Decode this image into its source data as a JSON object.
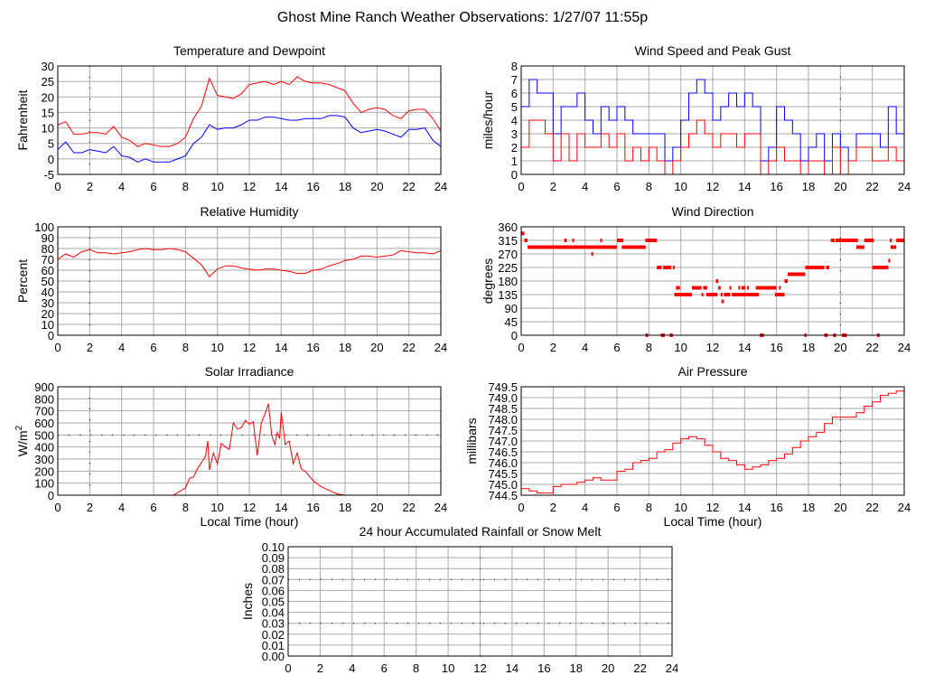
{
  "page_title": "Ghost Mine Ranch Weather Observations: 1/27/07 11:55p",
  "chart_data": [
    {
      "id": "temperature",
      "type": "line",
      "title": "Temperature and Dewpoint",
      "xlabel": "",
      "ylabel": "Fahrenheit",
      "xlim": [
        0,
        24
      ],
      "ylim": [
        -5,
        30
      ],
      "xticks": [
        "0",
        "2",
        "4",
        "6",
        "8",
        "10",
        "12",
        "14",
        "16",
        "18",
        "20",
        "22",
        "24"
      ],
      "yticks": [
        "-5",
        "0",
        "5",
        "10",
        "15",
        "20",
        "25",
        "30"
      ],
      "markers": {
        "x": [
          2
        ],
        "y": []
      },
      "x": [
        0,
        0.5,
        1,
        1.5,
        2,
        2.5,
        3,
        3.5,
        4,
        4.5,
        5,
        5.5,
        6,
        6.5,
        7,
        7.5,
        8,
        8.5,
        9,
        9.5,
        10,
        10.5,
        11,
        11.5,
        12,
        12.5,
        13,
        13.5,
        14,
        14.5,
        15,
        15.5,
        16,
        16.5,
        17,
        17.5,
        18,
        18.5,
        19,
        19.5,
        20,
        20.5,
        21,
        21.5,
        22,
        22.5,
        23,
        23.5,
        24
      ],
      "series": [
        {
          "name": "Temperature",
          "color": "#ff0000",
          "values": [
            11,
            12,
            8,
            8,
            8.5,
            8.5,
            8,
            10.5,
            7,
            6,
            4,
            5,
            4.5,
            4,
            4,
            5,
            7,
            13,
            17,
            26,
            20.5,
            20,
            19.5,
            21,
            24,
            24.5,
            25,
            24,
            25,
            24,
            26.5,
            25,
            24.5,
            24.5,
            24,
            23,
            22,
            18,
            15,
            16,
            16.5,
            16,
            14,
            13,
            15.5,
            16,
            16,
            13,
            9
          ]
        },
        {
          "name": "Dewpoint",
          "color": "#0000ff",
          "values": [
            3,
            5.5,
            2,
            2,
            3,
            2.5,
            2,
            4,
            1,
            0.5,
            -1,
            0,
            -1,
            -1,
            -1,
            0,
            1,
            5,
            7,
            11,
            9.5,
            10,
            10,
            11,
            12.5,
            12.5,
            13.5,
            13.5,
            13,
            12.5,
            12.5,
            13,
            13,
            13,
            14,
            14,
            13.5,
            10,
            8.5,
            9,
            9.5,
            9,
            8,
            7,
            9.5,
            9.5,
            10,
            6,
            4
          ]
        }
      ]
    },
    {
      "id": "wind",
      "type": "line",
      "title": "Wind Speed and Peak Gust",
      "xlabel": "",
      "ylabel": "miles/hour",
      "xlim": [
        0,
        24
      ],
      "ylim": [
        0,
        8
      ],
      "xticks": [
        "0",
        "2",
        "4",
        "6",
        "8",
        "10",
        "12",
        "14",
        "16",
        "18",
        "20",
        "22",
        "24"
      ],
      "yticks": [
        "0",
        "1",
        "2",
        "3",
        "4",
        "5",
        "6",
        "7",
        "8"
      ],
      "markers": {
        "x": [
          20
        ],
        "y": []
      },
      "step": true,
      "x": [
        0,
        0.5,
        1,
        1.5,
        2,
        2.5,
        3,
        3.5,
        4,
        4.5,
        5,
        5.5,
        6,
        6.5,
        7,
        7.5,
        8,
        8.5,
        9,
        9.5,
        10,
        10.5,
        11,
        11.5,
        12,
        12.5,
        13,
        13.5,
        14,
        14.5,
        15,
        15.5,
        16,
        16.5,
        17,
        17.5,
        18,
        18.5,
        19,
        19.5,
        20,
        20.5,
        21,
        21.5,
        22,
        22.5,
        23,
        23.5,
        24
      ],
      "series": [
        {
          "name": "Peak Gust",
          "color": "#0000ff",
          "values": [
            5,
            7,
            6,
            6,
            3,
            5,
            5,
            6,
            4,
            3,
            5,
            4,
            5,
            4,
            3,
            3,
            3,
            3,
            1,
            2,
            4,
            6,
            7,
            6,
            4,
            5,
            6,
            5,
            6,
            5,
            1,
            2,
            5,
            4,
            3,
            1,
            2,
            3,
            1,
            3,
            2,
            1,
            3,
            3,
            3,
            2,
            5,
            3,
            7
          ]
        },
        {
          "name": "Wind Speed",
          "color": "#ff0000",
          "values": [
            2,
            4,
            4,
            3,
            1,
            3,
            1,
            3,
            2,
            2,
            3,
            2,
            3,
            1,
            2,
            1,
            2,
            1,
            0,
            1,
            2,
            3,
            4,
            3,
            2,
            3,
            3,
            2,
            3,
            3,
            0,
            1,
            2,
            1,
            1,
            0,
            1,
            1,
            0,
            2,
            0,
            1,
            2,
            2,
            1,
            1,
            2,
            1,
            3
          ]
        }
      ]
    },
    {
      "id": "humidity",
      "type": "line",
      "title": "Relative Humidity",
      "xlabel": "",
      "ylabel": "Percent",
      "xlim": [
        0,
        24
      ],
      "ylim": [
        0,
        100
      ],
      "xticks": [
        "0",
        "2",
        "4",
        "6",
        "8",
        "10",
        "12",
        "14",
        "16",
        "18",
        "20",
        "22",
        "24"
      ],
      "yticks": [
        "0",
        "10",
        "20",
        "30",
        "40",
        "50",
        "60",
        "70",
        "80",
        "90",
        "100"
      ],
      "markers": {
        "x": [
          2
        ],
        "y": []
      },
      "x": [
        0,
        0.5,
        1,
        1.5,
        2,
        2.5,
        3,
        3.5,
        4,
        4.5,
        5,
        5.5,
        6,
        6.5,
        7,
        7.5,
        8,
        8.5,
        9,
        9.5,
        10,
        10.5,
        11,
        11.5,
        12,
        12.5,
        13,
        13.5,
        14,
        14.5,
        15,
        15.5,
        16,
        16.5,
        17,
        17.5,
        18,
        18.5,
        19,
        19.5,
        20,
        20.5,
        21,
        21.5,
        22,
        22.5,
        23,
        23.5,
        24
      ],
      "series": [
        {
          "name": "Relative Humidity",
          "color": "#ff0000",
          "values": [
            70,
            75,
            72,
            77,
            79,
            76,
            76,
            75,
            76,
            77,
            79,
            80,
            79,
            79,
            80,
            79,
            77,
            71,
            65,
            54,
            61,
            64,
            64,
            62,
            61,
            60,
            61,
            61,
            60,
            59,
            57,
            57,
            60,
            61,
            64,
            66,
            69,
            70,
            73,
            73,
            72,
            73,
            74,
            78,
            77,
            76,
            76,
            75,
            78
          ]
        }
      ]
    },
    {
      "id": "direction",
      "type": "scatter",
      "title": "Wind Direction",
      "xlabel": "",
      "ylabel": "degrees",
      "xlim": [
        0,
        24
      ],
      "ylim": [
        0,
        360
      ],
      "xticks": [
        "0",
        "2",
        "4",
        "6",
        "8",
        "10",
        "12",
        "14",
        "16",
        "18",
        "20",
        "22",
        "24"
      ],
      "yticks": [
        "0",
        "45",
        "90",
        "135",
        "180",
        "225",
        "270",
        "315",
        "360"
      ],
      "markers": {
        "x": [
          20
        ],
        "y": []
      },
      "color": "#ff0000",
      "segments": [
        [
          0,
          0.2,
          338
        ],
        [
          0.2,
          0.4,
          315
        ],
        [
          0.4,
          6,
          292.5
        ],
        [
          2.7,
          2.85,
          315
        ],
        [
          3.2,
          3.27,
          315
        ],
        [
          4.4,
          4.47,
          270
        ],
        [
          4.95,
          5.02,
          315
        ],
        [
          6,
          6.4,
          315
        ],
        [
          6.3,
          7.8,
          292.5
        ],
        [
          7.78,
          7.85,
          315
        ],
        [
          7.9,
          8.5,
          315
        ],
        [
          7.8,
          7.95,
          0
        ],
        [
          8.5,
          8.8,
          225
        ],
        [
          8.75,
          9.0,
          0
        ],
        [
          8.9,
          9.4,
          225
        ],
        [
          9.3,
          9.5,
          0
        ],
        [
          9.5,
          9.57,
          225
        ],
        [
          9.6,
          10.7,
          135
        ],
        [
          9.7,
          9.95,
          157.5
        ],
        [
          10.7,
          11.3,
          157.5
        ],
        [
          11.3,
          11.4,
          135
        ],
        [
          11.4,
          11.65,
          157.5
        ],
        [
          11.6,
          12.3,
          135
        ],
        [
          12.2,
          12.35,
          180
        ],
        [
          12.35,
          12.5,
          157.5
        ],
        [
          12.5,
          12.57,
          135
        ],
        [
          12.55,
          12.7,
          112.5
        ],
        [
          12.7,
          13.1,
          135
        ],
        [
          13.05,
          13.15,
          157.5
        ],
        [
          13.2,
          14.9,
          135
        ],
        [
          13.6,
          13.67,
          157.5
        ],
        [
          13.8,
          14.05,
          157.5
        ],
        [
          14.15,
          14.25,
          157.5
        ],
        [
          14.7,
          15.3,
          157.5
        ],
        [
          14.95,
          15.2,
          0
        ],
        [
          15.3,
          16.0,
          157.5
        ],
        [
          15.9,
          16.5,
          135
        ],
        [
          16.15,
          16.22,
          157.5
        ],
        [
          16.5,
          16.7,
          180
        ],
        [
          16.7,
          17.8,
          202.5
        ],
        [
          17.75,
          17.82,
          0
        ],
        [
          17.8,
          19.0,
          225
        ],
        [
          19,
          19.2,
          0
        ],
        [
          19.1,
          19.3,
          225
        ],
        [
          19.4,
          19.65,
          315
        ],
        [
          19.55,
          19.72,
          0
        ],
        [
          19.7,
          20.6,
          315
        ],
        [
          20.1,
          20.4,
          0
        ],
        [
          20.5,
          21.1,
          315
        ],
        [
          21.0,
          21.5,
          292.5
        ],
        [
          21.5,
          22.1,
          315
        ],
        [
          22.0,
          23.0,
          225
        ],
        [
          22.3,
          22.45,
          0
        ],
        [
          23.0,
          23.12,
          247.5
        ],
        [
          23.1,
          23.2,
          315
        ],
        [
          23.15,
          23.5,
          292.5
        ],
        [
          23.5,
          24,
          315
        ]
      ]
    },
    {
      "id": "solar",
      "type": "line",
      "title": "Solar Irradiance",
      "xlabel": "Local Time (hour)",
      "ylabel": "W/m",
      "ylabel_sup": "2",
      "xlim": [
        0,
        24
      ],
      "ylim": [
        0,
        900
      ],
      "xticks": [
        "0",
        "2",
        "4",
        "6",
        "8",
        "10",
        "12",
        "14",
        "16",
        "18",
        "20",
        "22",
        "24"
      ],
      "yticks": [
        "0",
        "100",
        "200",
        "300",
        "400",
        "500",
        "600",
        "700",
        "800",
        "900"
      ],
      "markers": {
        "x": [
          2
        ],
        "y": [
          500
        ]
      },
      "x": [
        0,
        7.25,
        7.5,
        8,
        8.25,
        8.5,
        8.75,
        9,
        9.25,
        9.4,
        9.5,
        9.75,
        10,
        10.25,
        10.5,
        10.75,
        11,
        11.25,
        11.5,
        11.75,
        12,
        12.25,
        12.5,
        12.75,
        13,
        13.2,
        13.4,
        13.6,
        13.75,
        13.9,
        14,
        14.25,
        14.5,
        14.75,
        15,
        15.25,
        15.5,
        16,
        16.5,
        17,
        17.5,
        18,
        24
      ],
      "series": [
        {
          "name": "Solar Irradiance",
          "color": "#ff0000",
          "values": [
            0,
            0,
            20,
            60,
            140,
            150,
            220,
            270,
            320,
            450,
            210,
            350,
            260,
            430,
            400,
            380,
            600,
            550,
            560,
            620,
            590,
            610,
            330,
            600,
            680,
            760,
            500,
            420,
            520,
            470,
            690,
            420,
            450,
            260,
            350,
            220,
            200,
            120,
            70,
            40,
            10,
            0,
            0
          ]
        }
      ]
    },
    {
      "id": "pressure",
      "type": "line",
      "title": "Air Pressure",
      "xlabel": "Local Time (hour)",
      "ylabel": "millibars",
      "xlim": [
        0,
        24
      ],
      "ylim": [
        744.5,
        749.5
      ],
      "xticks": [
        "0",
        "2",
        "4",
        "6",
        "8",
        "10",
        "12",
        "14",
        "16",
        "18",
        "20",
        "22",
        "24"
      ],
      "yticks": [
        "744.5",
        "745.0",
        "745.5",
        "746.0",
        "746.5",
        "747.0",
        "747.5",
        "748.0",
        "748.5",
        "749.0",
        "749.5"
      ],
      "markers": {
        "x": [
          20
        ],
        "y": []
      },
      "step": true,
      "x": [
        0,
        0.5,
        1,
        1.5,
        2,
        2.5,
        3,
        3.5,
        4,
        4.5,
        5,
        5.5,
        6,
        6.5,
        7,
        7.5,
        8,
        8.5,
        9,
        9.5,
        10,
        10.5,
        11,
        11.5,
        12,
        12.5,
        13,
        13.5,
        14,
        14.5,
        15,
        15.5,
        16,
        16.5,
        17,
        17.5,
        18,
        18.5,
        19,
        19.5,
        20,
        20.5,
        21,
        21.5,
        22,
        22.5,
        23,
        23.5,
        24
      ],
      "series": [
        {
          "name": "Air Pressure",
          "color": "#ff0000",
          "values": [
            744.8,
            744.7,
            744.6,
            744.6,
            744.9,
            745,
            745,
            745.1,
            745.2,
            745.3,
            745.2,
            745.2,
            745.6,
            745.7,
            746,
            746.1,
            746.2,
            746.5,
            746.6,
            746.9,
            747.1,
            747.2,
            747.1,
            746.8,
            746.5,
            746.2,
            746.1,
            745.9,
            745.7,
            745.8,
            745.9,
            746.1,
            746.2,
            746.4,
            746.7,
            747.0,
            747.2,
            747.4,
            747.8,
            748.1,
            748.1,
            748.1,
            748.3,
            748.6,
            748.8,
            749.1,
            749.2,
            749.3,
            749.4
          ]
        }
      ]
    },
    {
      "id": "rainfall",
      "type": "line",
      "title": "24 hour Accumulated Rainfall or Snow Melt",
      "xlabel": "",
      "ylabel": "Inches",
      "xlim": [
        0,
        24
      ],
      "ylim": [
        0,
        0.1
      ],
      "xticks": [
        "0",
        "2",
        "4",
        "6",
        "8",
        "10",
        "12",
        "14",
        "16",
        "18",
        "20",
        "22",
        "24"
      ],
      "yticks": [
        "0.00",
        "0.01",
        "0.02",
        "0.03",
        "0.04",
        "0.05",
        "0.06",
        "0.07",
        "0.08",
        "0.09",
        "0.10"
      ],
      "markers": {
        "x": [
          12
        ],
        "y": [
          0.03,
          0.07
        ]
      },
      "x": [
        0,
        24
      ],
      "series": [
        {
          "name": "Accumulated Rainfall",
          "color": "#ff0000",
          "values": [
            0,
            0
          ]
        }
      ]
    }
  ]
}
